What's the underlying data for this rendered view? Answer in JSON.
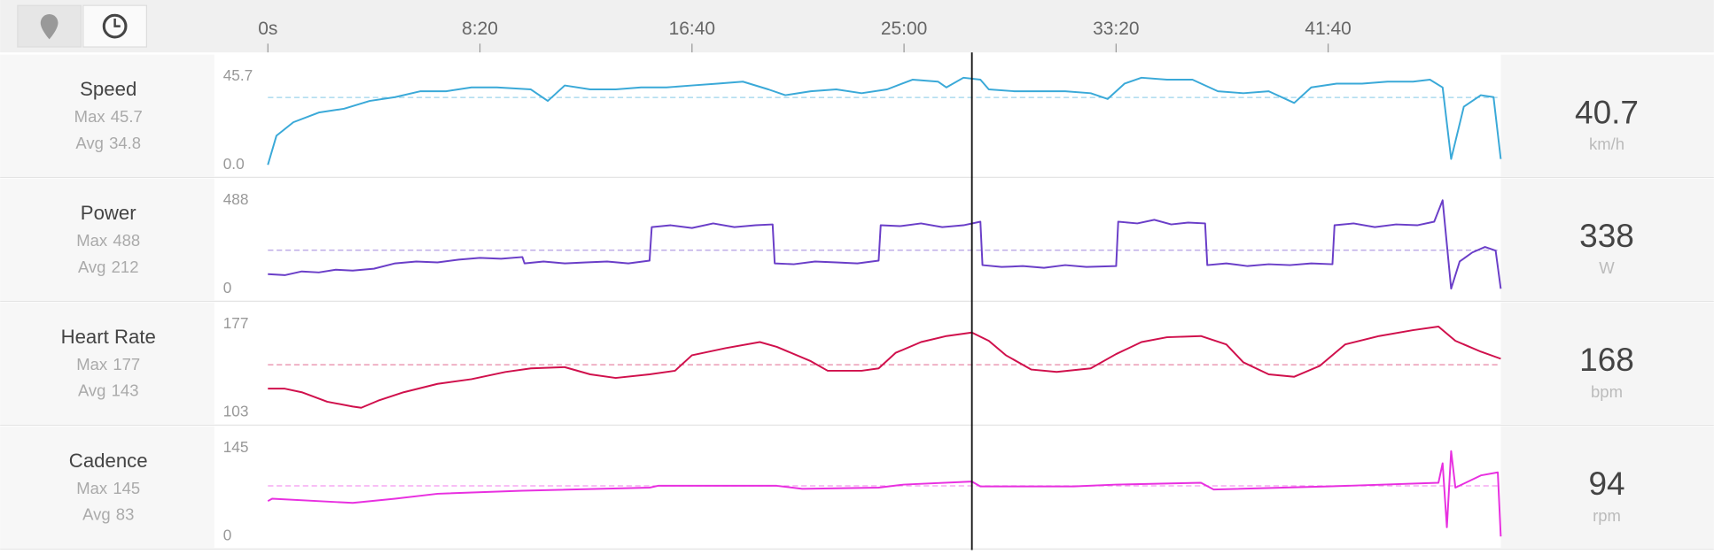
{
  "x_axis": {
    "xlim": [
      0,
      2907
    ],
    "xticks": [
      {
        "value": 0,
        "label": "0s"
      },
      {
        "value": 500,
        "label": "8:20"
      },
      {
        "value": 1000,
        "label": "16:40"
      },
      {
        "value": 1500,
        "label": "25:00"
      },
      {
        "value": 2000,
        "label": "33:20"
      },
      {
        "value": 2500,
        "label": "41:40"
      }
    ]
  },
  "cursor_x": 1660,
  "chart_data": [
    {
      "type": "line",
      "title": "Speed",
      "max_label": "Max",
      "max": 45.7,
      "avg_label": "Avg",
      "avg": 34.8,
      "current": 40.7,
      "unit": "km/h",
      "color": "#3aa9d8",
      "ylim": [
        0,
        45.7
      ],
      "yticks": [
        {
          "value": 0,
          "label": "0.0"
        },
        45.7
      ],
      "x": [
        0,
        20,
        60,
        120,
        180,
        240,
        300,
        360,
        420,
        480,
        540,
        620,
        660,
        700,
        760,
        820,
        880,
        940,
        1000,
        1060,
        1120,
        1180,
        1220,
        1280,
        1340,
        1400,
        1460,
        1520,
        1580,
        1600,
        1640,
        1680,
        1700,
        1760,
        1820,
        1880,
        1940,
        1980,
        2020,
        2060,
        2120,
        2180,
        2240,
        2300,
        2360,
        2420,
        2460,
        2520,
        2580,
        2640,
        2700,
        2740,
        2770,
        2790,
        2820,
        2860,
        2890,
        2907
      ],
      "values": [
        0,
        15,
        22,
        27,
        29,
        33,
        35,
        38,
        38,
        40,
        40,
        39,
        33,
        41,
        39,
        39,
        40,
        40,
        41,
        42,
        43,
        39,
        36,
        38,
        39,
        37,
        39,
        44,
        43,
        40,
        45,
        44,
        39,
        38,
        38,
        38,
        37,
        34,
        42,
        45,
        44,
        44,
        38,
        37,
        38,
        32,
        40,
        42,
        42,
        43,
        43,
        44,
        40,
        3,
        30,
        36,
        35,
        3
      ]
    },
    {
      "type": "line",
      "title": "Power",
      "max_label": "Max",
      "max": 488,
      "avg_label": "Avg",
      "avg": 212,
      "current": 338,
      "unit": "W",
      "color": "#6a3ec8",
      "ylim": [
        0,
        488
      ],
      "yticks": [
        0,
        488
      ],
      "x": [
        0,
        40,
        80,
        120,
        160,
        200,
        250,
        300,
        350,
        400,
        450,
        500,
        550,
        600,
        605,
        650,
        700,
        750,
        800,
        850,
        900,
        905,
        950,
        1000,
        1050,
        1100,
        1150,
        1190,
        1195,
        1240,
        1290,
        1340,
        1390,
        1440,
        1445,
        1490,
        1540,
        1590,
        1640,
        1680,
        1685,
        1730,
        1780,
        1830,
        1880,
        1930,
        2000,
        2005,
        2050,
        2090,
        2130,
        2170,
        2210,
        2215,
        2260,
        2310,
        2360,
        2410,
        2460,
        2510,
        2515,
        2560,
        2610,
        2660,
        2710,
        2750,
        2770,
        2790,
        2810,
        2840,
        2870,
        2895,
        2907
      ],
      "values": [
        80,
        75,
        95,
        90,
        105,
        100,
        110,
        140,
        150,
        145,
        160,
        170,
        165,
        175,
        140,
        150,
        140,
        145,
        150,
        140,
        155,
        340,
        350,
        335,
        360,
        340,
        350,
        355,
        140,
        135,
        150,
        145,
        140,
        155,
        350,
        345,
        360,
        340,
        350,
        370,
        130,
        120,
        125,
        115,
        130,
        120,
        125,
        370,
        360,
        380,
        355,
        365,
        360,
        130,
        140,
        125,
        135,
        130,
        140,
        135,
        350,
        360,
        340,
        355,
        350,
        370,
        488,
        0,
        150,
        200,
        230,
        210,
        0
      ]
    },
    {
      "type": "line",
      "title": "Heart Rate",
      "max_label": "Max",
      "max": 177,
      "avg_label": "Avg",
      "avg": 143,
      "current": 168,
      "unit": "bpm",
      "color": "#d0104c",
      "ylim": [
        103,
        177
      ],
      "yticks": [
        103,
        177
      ],
      "x": [
        0,
        40,
        80,
        140,
        200,
        220,
        260,
        320,
        400,
        480,
        560,
        620,
        700,
        760,
        820,
        900,
        960,
        1000,
        1080,
        1160,
        1200,
        1280,
        1320,
        1400,
        1440,
        1480,
        1540,
        1600,
        1660,
        1700,
        1740,
        1800,
        1860,
        1940,
        2000,
        2060,
        2120,
        2200,
        2260,
        2300,
        2360,
        2420,
        2480,
        2540,
        2620,
        2700,
        2760,
        2800,
        2860,
        2907
      ],
      "values": [
        123,
        123,
        120,
        112,
        108,
        107,
        113,
        120,
        127,
        131,
        137,
        140,
        141,
        135,
        132,
        135,
        138,
        151,
        157,
        162,
        158,
        146,
        138,
        138,
        140,
        153,
        162,
        167,
        170,
        163,
        151,
        139,
        137,
        140,
        152,
        162,
        166,
        167,
        160,
        145,
        135,
        133,
        142,
        160,
        167,
        172,
        175,
        163,
        154,
        148
      ]
    },
    {
      "type": "line",
      "title": "Cadence",
      "max_label": "Max",
      "max": 145,
      "avg_label": "Avg",
      "avg": 83,
      "current": 94,
      "unit": "rpm",
      "color": "#e830e0",
      "ylim": [
        0,
        145
      ],
      "yticks": [
        0,
        145
      ],
      "x": [
        0,
        10,
        200,
        300,
        400,
        600,
        900,
        920,
        1200,
        1260,
        1440,
        1500,
        1660,
        1680,
        1900,
        2000,
        2200,
        2230,
        2500,
        2760,
        2770,
        2780,
        2790,
        2800,
        2860,
        2900,
        2907
      ],
      "values": [
        58,
        62,
        55,
        62,
        70,
        75,
        80,
        83,
        83,
        78,
        80,
        85,
        90,
        82,
        82,
        85,
        88,
        77,
        82,
        88,
        120,
        15,
        140,
        80,
        100,
        105,
        0
      ]
    }
  ]
}
